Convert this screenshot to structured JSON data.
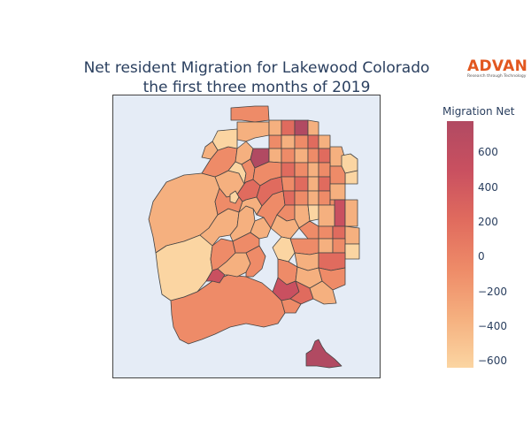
{
  "title": {
    "line1": "Net resident Migration for Lakewood Colorado",
    "line2": "the first three months of 2019"
  },
  "logo": {
    "main": "ADVAN",
    "sub": "Research through Technology"
  },
  "colorbar": {
    "title": "Migration Net",
    "ticks": [
      {
        "value": 600,
        "label": "600"
      },
      {
        "value": 400,
        "label": "400"
      },
      {
        "value": 200,
        "label": "200"
      },
      {
        "value": 0,
        "label": "0"
      },
      {
        "value": -200,
        "label": "−200"
      },
      {
        "value": -400,
        "label": "−400"
      },
      {
        "value": -600,
        "label": "−600"
      }
    ],
    "range": [
      -640,
      780
    ],
    "colors": [
      "#fbd5a2",
      "#f5b07f",
      "#ee8b68",
      "#e06b5e",
      "#c95060",
      "#b14a62"
    ]
  }
}
